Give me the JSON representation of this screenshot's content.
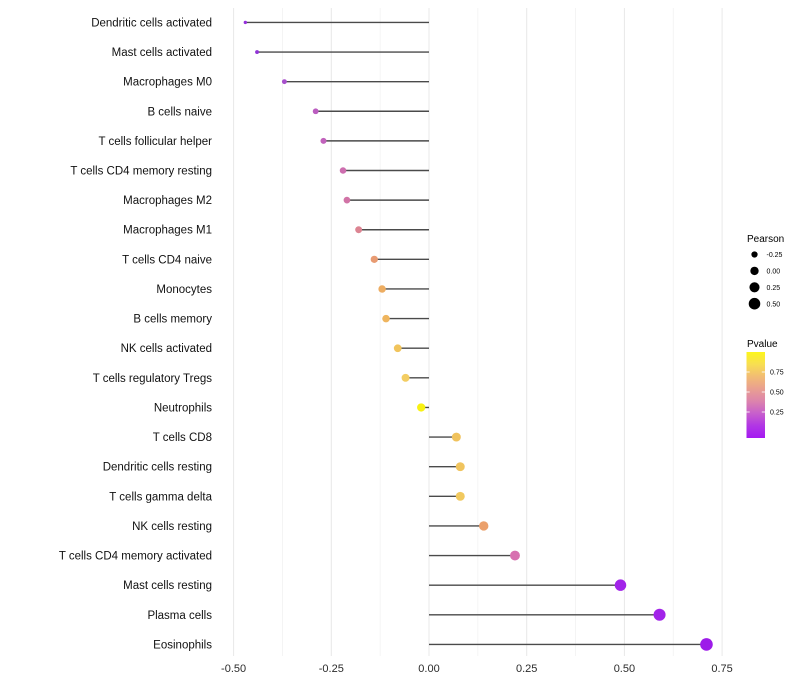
{
  "chart_data": {
    "type": "scatter",
    "variant": "lollipop",
    "title": "",
    "xlabel": "",
    "ylabel": "",
    "xlim": [
      -0.55,
      0.8
    ],
    "grid": "on",
    "x_ticks": [
      {
        "value": -0.5,
        "label": "-0.50"
      },
      {
        "value": -0.25,
        "label": "-0.25"
      },
      {
        "value": 0.0,
        "label": "0.00"
      },
      {
        "value": 0.25,
        "label": "0.25"
      },
      {
        "value": 0.5,
        "label": "0.50"
      },
      {
        "value": 0.75,
        "label": "0.75"
      }
    ],
    "x_minor_ticks": [
      -0.375,
      -0.125,
      0.125,
      0.375,
      0.625
    ],
    "points": [
      {
        "label": "Dendritic cells activated",
        "pearson": -0.47,
        "color": "#9530DB"
      },
      {
        "label": "Mast cells activated",
        "pearson": -0.44,
        "color": "#9134D6"
      },
      {
        "label": "Macrophages M0",
        "pearson": -0.37,
        "color": "#A74FCC"
      },
      {
        "label": "B cells naive",
        "pearson": -0.29,
        "color": "#BB5DC0"
      },
      {
        "label": "T cells follicular helper",
        "pearson": -0.27,
        "color": "#C162BC"
      },
      {
        "label": "T cells CD4 memory resting",
        "pearson": -0.22,
        "color": "#CD6EAF"
      },
      {
        "label": "Macrophages M2",
        "pearson": -0.21,
        "color": "#D173A6"
      },
      {
        "label": "Macrophages M1",
        "pearson": -0.18,
        "color": "#DC8492"
      },
      {
        "label": "T cells CD4 naive",
        "pearson": -0.14,
        "color": "#E89B72"
      },
      {
        "label": "Monocytes",
        "pearson": -0.12,
        "color": "#EDAD62"
      },
      {
        "label": "B cells memory",
        "pearson": -0.11,
        "color": "#EFB55E"
      },
      {
        "label": "NK cells activated",
        "pearson": -0.08,
        "color": "#F1C45C"
      },
      {
        "label": "T cells regulatory  Tregs",
        "pearson": -0.06,
        "color": "#F3CD62"
      },
      {
        "label": "Neutrophils",
        "pearson": -0.02,
        "color": "#F8F112"
      },
      {
        "label": "T cells CD8",
        "pearson": 0.07,
        "color": "#F0C25C"
      },
      {
        "label": "Dendritic cells resting",
        "pearson": 0.08,
        "color": "#F0C45E"
      },
      {
        "label": "T cells gamma delta",
        "pearson": 0.08,
        "color": "#F1C95F"
      },
      {
        "label": "NK cells resting",
        "pearson": 0.14,
        "color": "#EBA06B"
      },
      {
        "label": "T cells CD4 memory activated",
        "pearson": 0.22,
        "color": "#D770B0"
      },
      {
        "label": "Mast cells resting",
        "pearson": 0.49,
        "color": "#A224E9"
      },
      {
        "label": "Plasma cells",
        "pearson": 0.59,
        "color": "#A224E9"
      },
      {
        "label": "Eosinophils",
        "pearson": 0.71,
        "color": "#9D1BE9"
      }
    ],
    "legend": {
      "size": {
        "title": "Pearson",
        "entries": [
          {
            "label": "-0.25",
            "value": -0.25
          },
          {
            "label": "0.00",
            "value": 0.0
          },
          {
            "label": "0.25",
            "value": 0.25
          },
          {
            "label": "0.50",
            "value": 0.5
          }
        ],
        "dot_color": "#000000"
      },
      "color": {
        "title": "Pvalue",
        "ticks": [
          {
            "label": "0.75",
            "value": 0.75
          },
          {
            "label": "0.50",
            "value": 0.5
          },
          {
            "label": "0.25",
            "value": 0.25
          }
        ],
        "gradient_top_to_bottom": [
          "#FCF61B",
          "#F8DE52",
          "#F2BC74",
          "#E99F91",
          "#DC84AC",
          "#C75FCC",
          "#B136E5",
          "#A519F1"
        ]
      }
    },
    "colors": {
      "stem": "#4A4A4A",
      "grid_major": "#E8E8E8",
      "grid_minor": "#F2F2F2",
      "axis_text": "#2B2B2B",
      "label_text": "#111111"
    }
  }
}
